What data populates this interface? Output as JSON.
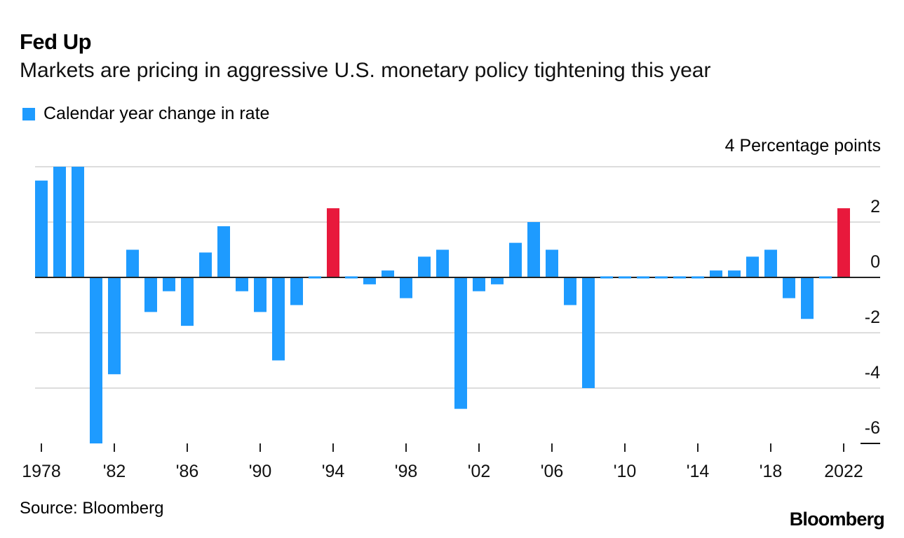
{
  "title": "Fed Up",
  "subtitle": "Markets are pricing in aggressive U.S. monetary policy tightening this year",
  "legend": {
    "label": "Calendar year change in rate",
    "color": "#1e9bff"
  },
  "units_label": "4 Percentage points",
  "source": "Source: Bloomberg",
  "brand": "Bloomberg",
  "colors": {
    "bar": "#1e9bff",
    "highlight": "#e8193c",
    "grid": "#dddddd",
    "zero": "#222222"
  },
  "chart_data": {
    "type": "bar",
    "title": "Fed Up",
    "subtitle": "Markets are pricing in aggressive U.S. monetary policy tightening this year",
    "xlabel": "",
    "ylabel": "Percentage points",
    "ylim": [
      -6,
      4
    ],
    "y_ticks": [
      -6,
      -4,
      -2,
      0,
      2,
      4
    ],
    "y_tick_labels": [
      "-6",
      "-4",
      "-2",
      "0",
      "2",
      "4 Percentage points"
    ],
    "x_ticks": [
      1978,
      1982,
      1986,
      1990,
      1994,
      1998,
      2002,
      2006,
      2010,
      2014,
      2018,
      2022
    ],
    "x_tick_labels": [
      "1978",
      "'82",
      "'86",
      "'90",
      "'94",
      "'98",
      "'02",
      "'06",
      "'10",
      "'14",
      "'18",
      "2022"
    ],
    "grid": true,
    "legend": [
      "Calendar year change in rate"
    ],
    "legend_position": "top-left",
    "highlighted_categories": [
      1994,
      2022
    ],
    "categories": [
      1978,
      1979,
      1980,
      1981,
      1982,
      1983,
      1984,
      1985,
      1986,
      1987,
      1988,
      1989,
      1990,
      1991,
      1992,
      1993,
      1994,
      1995,
      1996,
      1997,
      1998,
      1999,
      2000,
      2001,
      2002,
      2003,
      2004,
      2005,
      2006,
      2007,
      2008,
      2009,
      2010,
      2011,
      2012,
      2013,
      2014,
      2015,
      2016,
      2017,
      2018,
      2019,
      2020,
      2021,
      2022
    ],
    "series": [
      {
        "name": "Calendar year change in rate",
        "values": [
          3.5,
          4,
          4,
          -6,
          -3.5,
          1,
          -1.25,
          -0.5,
          -1.75,
          0.9,
          1.85,
          -0.5,
          -1.25,
          -3,
          -1,
          0,
          2.5,
          0,
          -0.25,
          0.25,
          -0.75,
          0.75,
          1,
          -4.75,
          -0.5,
          -0.25,
          1.25,
          2,
          1,
          -1,
          -4,
          0,
          0,
          0,
          0,
          0,
          0,
          0.25,
          0.25,
          0.75,
          1,
          -0.75,
          -1.5,
          0,
          2.5
        ]
      }
    ]
  }
}
